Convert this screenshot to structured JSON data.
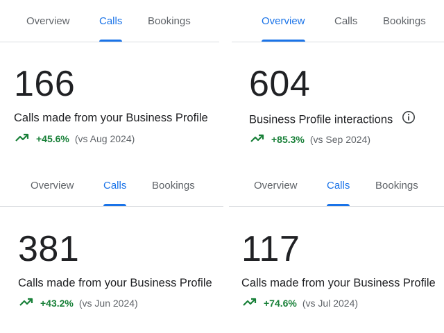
{
  "panels": [
    {
      "tabs": [
        {
          "label": "Overview",
          "active": false
        },
        {
          "label": "Calls",
          "active": true
        },
        {
          "label": "Bookings",
          "active": false
        }
      ],
      "value": "166",
      "label": "Calls made from your Business Profile",
      "change": "+45.6%",
      "compare": "(vs Aug 2024)",
      "info_icon": false
    },
    {
      "tabs": [
        {
          "label": "Overview",
          "active": true
        },
        {
          "label": "Calls",
          "active": false
        },
        {
          "label": "Bookings",
          "active": false
        }
      ],
      "value": "604",
      "label": "Business Profile interactions",
      "change": "+85.3%",
      "compare": "(vs Sep 2024)",
      "info_icon": true
    },
    {
      "tabs": [
        {
          "label": "Overview",
          "active": false
        },
        {
          "label": "Calls",
          "active": true
        },
        {
          "label": "Bookings",
          "active": false
        }
      ],
      "value": "381",
      "label": "Calls made from your Business Profile",
      "change": "+43.2%",
      "compare": "(vs Jun 2024)",
      "info_icon": false
    },
    {
      "tabs": [
        {
          "label": "Overview",
          "active": false
        },
        {
          "label": "Calls",
          "active": true
        },
        {
          "label": "Bookings",
          "active": false
        }
      ],
      "value": "117",
      "label": "Calls made from your Business Profile",
      "change": "+74.6%",
      "compare": "(vs Jul 2024)",
      "info_icon": false
    }
  ],
  "icons": {
    "trend": "trending-up-icon",
    "info": "info-icon"
  },
  "colors": {
    "accent": "#1a73e8",
    "positive": "#188038",
    "muted": "#5f6368",
    "divider": "#dadce0"
  }
}
